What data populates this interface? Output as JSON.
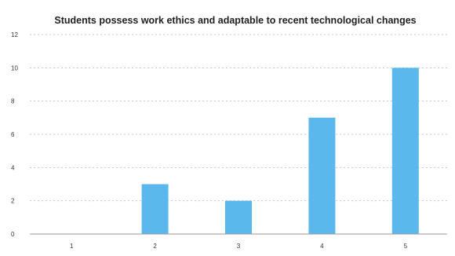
{
  "chart_data": {
    "type": "bar",
    "title": "Students possess work ethics and adaptable to recent technological changes",
    "categories": [
      "1",
      "2",
      "3",
      "4",
      "5"
    ],
    "values": [
      0,
      3,
      2,
      7,
      10
    ],
    "ylim": [
      0,
      12
    ],
    "yticks": [
      "0",
      "2",
      "4",
      "6",
      "8",
      "10",
      "12"
    ],
    "grid": true,
    "legend": "none",
    "bar_color": "#5bb8ec"
  }
}
